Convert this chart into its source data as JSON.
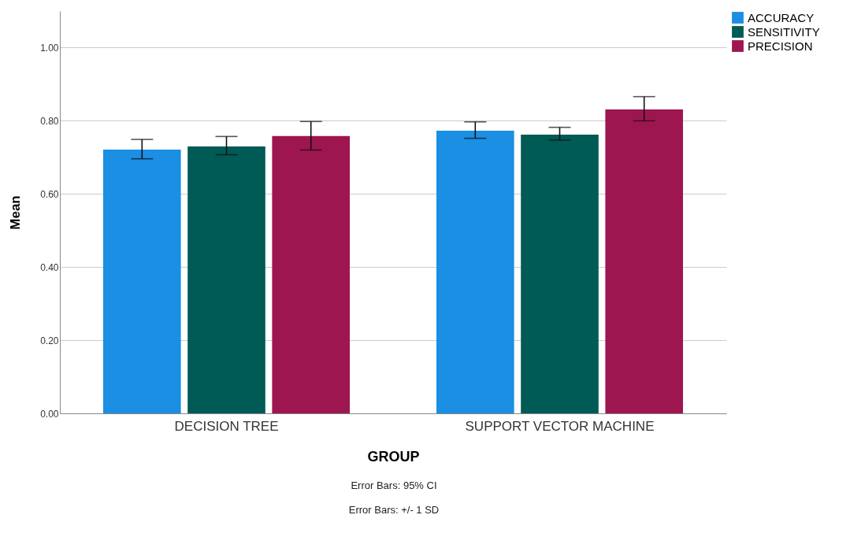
{
  "chart_data": {
    "type": "bar",
    "xlabel": "GROUP",
    "ylabel": "Mean",
    "categories": [
      "DECISION TREE",
      "SUPPORT VECTOR MACHINE"
    ],
    "series": [
      {
        "name": "ACCURACY",
        "color": "#1a8fe3",
        "values": [
          0.721,
          0.773
        ],
        "errors": [
          [
            0.696,
            0.749
          ],
          [
            0.752,
            0.797
          ]
        ]
      },
      {
        "name": "SENSITIVITY",
        "color": "#005a55",
        "values": [
          0.73,
          0.762
        ],
        "errors": [
          [
            0.707,
            0.757
          ],
          [
            0.747,
            0.782
          ]
        ]
      },
      {
        "name": "PRECISION",
        "color": "#9e1650",
        "values": [
          0.758,
          0.831
        ],
        "errors": [
          [
            0.72,
            0.798
          ],
          [
            0.8,
            0.866
          ]
        ]
      }
    ],
    "ylim": [
      0,
      1.1
    ],
    "yticks": [
      {
        "value": 0,
        "label": "0.00"
      },
      {
        "value": 0.2,
        "label": "0.20"
      },
      {
        "value": 0.4,
        "label": "0.40"
      },
      {
        "value": 0.6,
        "label": "0.60"
      },
      {
        "value": 0.8,
        "label": "0.80"
      },
      {
        "value": 1,
        "label": "1.00"
      }
    ],
    "grid": "y",
    "legend": "top right",
    "annotations": [
      "Error Bars: 95% CI",
      "Error Bars: +/- 1 SD"
    ]
  }
}
